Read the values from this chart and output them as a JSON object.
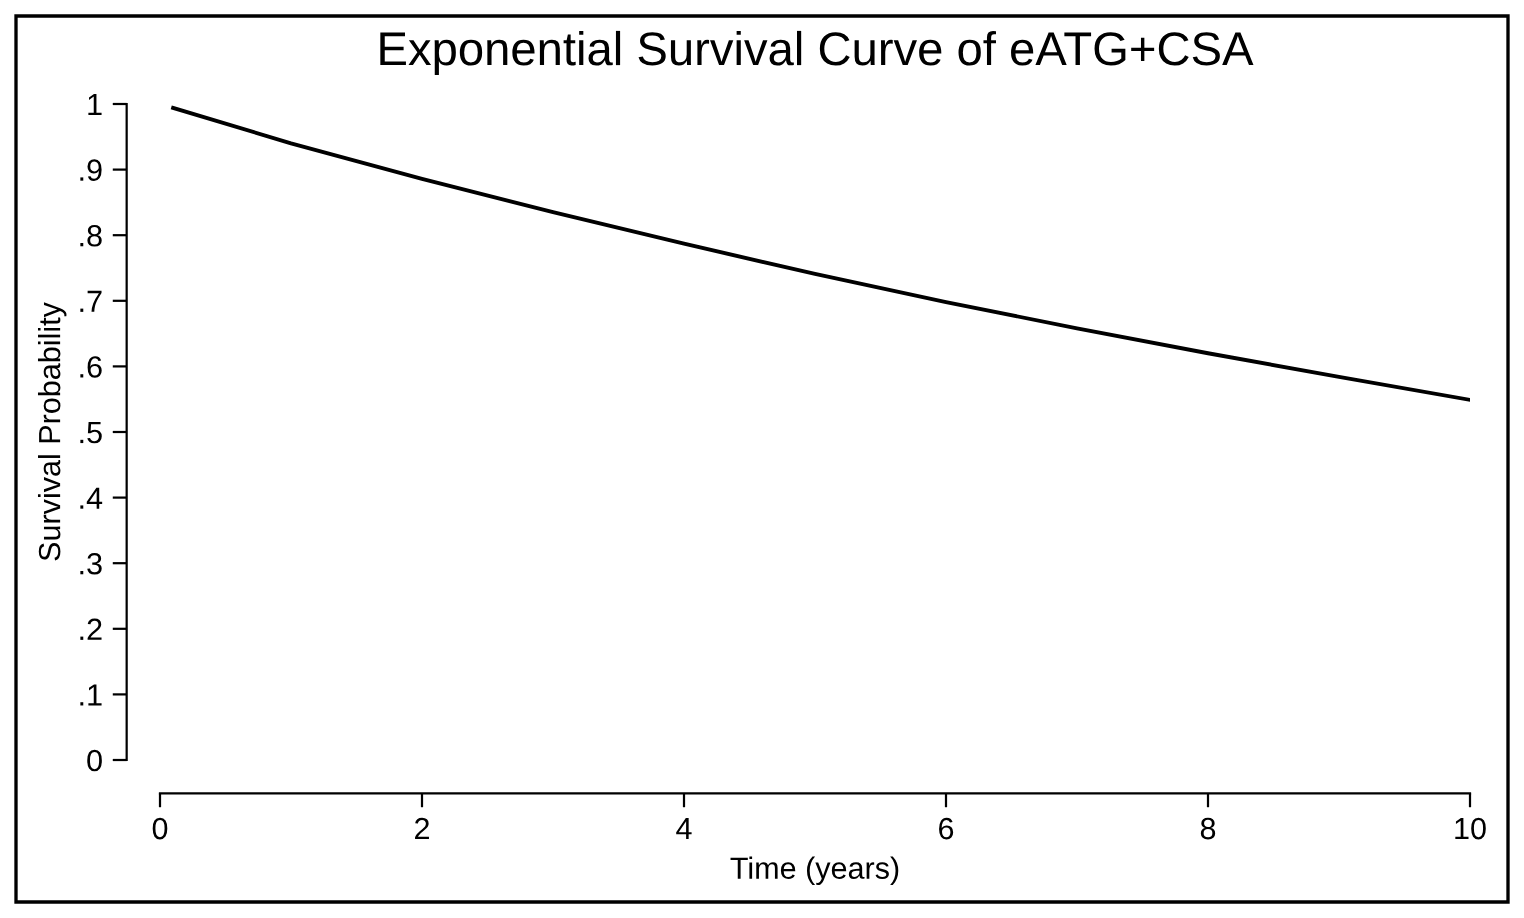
{
  "chart_data": {
    "type": "line",
    "title": "Exponential Survival Curve of eATG+CSA",
    "xlabel": "Time (years)",
    "ylabel": "Survival Probability",
    "x": [
      0.1,
      1,
      2,
      3,
      4,
      5,
      6,
      7,
      8,
      9,
      10
    ],
    "series": [
      {
        "color": "#000000",
        "values": [
          0.994,
          0.94,
          0.886,
          0.835,
          0.787,
          0.741,
          0.698,
          0.658,
          0.62,
          0.584,
          0.549
        ]
      }
    ],
    "xlim": [
      0,
      10
    ],
    "xticks": [
      0,
      2,
      4,
      6,
      8,
      10
    ],
    "ylim": [
      0,
      1
    ],
    "yticks": [
      {
        "value": 0,
        "label": "0"
      },
      {
        "value": 0.1,
        "label": ".1"
      },
      {
        "value": 0.2,
        "label": ".2"
      },
      {
        "value": 0.3,
        "label": ".3"
      },
      {
        "value": 0.4,
        "label": ".4"
      },
      {
        "value": 0.5,
        "label": ".5"
      },
      {
        "value": 0.6,
        "label": ".6"
      },
      {
        "value": 0.7,
        "label": ".7"
      },
      {
        "value": 0.8,
        "label": ".8"
      },
      {
        "value": 0.9,
        "label": ".9"
      },
      {
        "value": 1,
        "label": "1"
      }
    ],
    "grid": false,
    "legend": false,
    "marker": "none",
    "line_style": "solid"
  }
}
